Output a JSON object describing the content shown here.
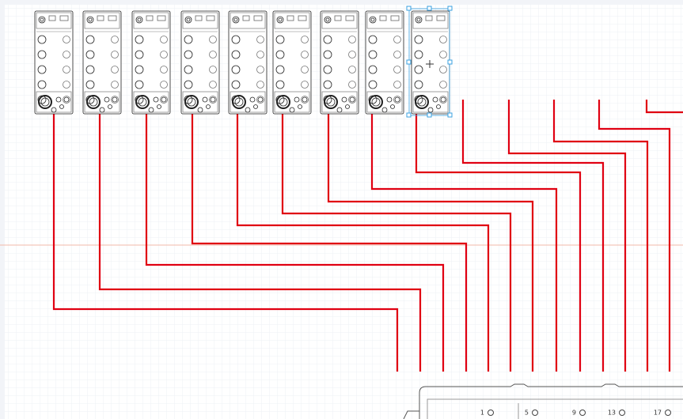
{
  "terminal_block": {
    "labels": [
      "1",
      "5",
      "9",
      "13",
      "17"
    ]
  }
}
